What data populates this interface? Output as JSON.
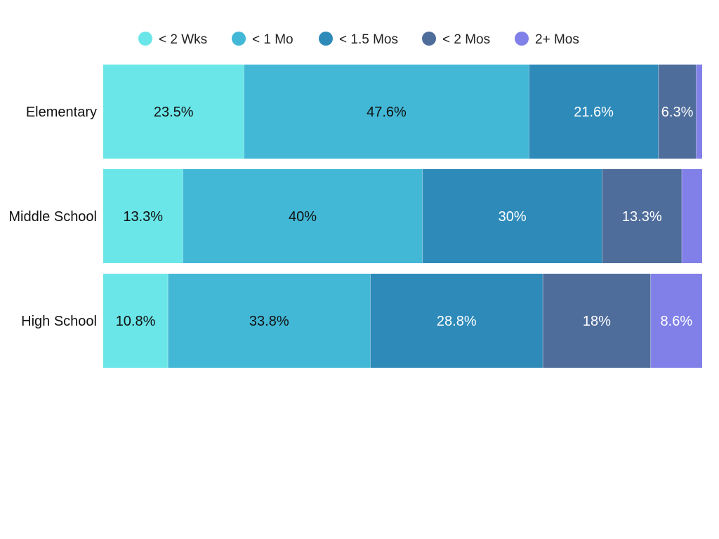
{
  "chart_data": {
    "type": "bar",
    "orientation": "horizontal",
    "stacked": "percent",
    "title": "",
    "xlabel": "",
    "ylabel": "",
    "xlim": [
      0,
      100
    ],
    "grid": false,
    "legend_position": "top-center",
    "categories": [
      "Elementary",
      "Middle School",
      "High School"
    ],
    "series": [
      {
        "name": "< 2 Wks",
        "color": "#6ae6e8",
        "label_color": "#111111",
        "values": [
          23.5,
          13.3,
          10.8
        ],
        "labels": [
          "23.5%",
          "13.3%",
          "10.8%"
        ]
      },
      {
        "name": "< 1 Mo",
        "color": "#42b8d6",
        "label_color": "#111111",
        "values": [
          47.6,
          40,
          33.8
        ],
        "labels": [
          "47.6%",
          "40%",
          "33.8%"
        ]
      },
      {
        "name": "< 1.5 Mos",
        "color": "#2d8ab9",
        "label_color": "#ffffff",
        "values": [
          21.6,
          30,
          28.8
        ],
        "labels": [
          "21.6%",
          "30%",
          "28.8%"
        ]
      },
      {
        "name": "< 2 Mos",
        "color": "#4f6d9b",
        "label_color": "#ffffff",
        "values": [
          6.3,
          13.3,
          18
        ],
        "labels": [
          "6.3%",
          "13.3%",
          "18%"
        ]
      },
      {
        "name": "2+ Mos",
        "color": "#8080e8",
        "label_color": "#ffffff",
        "values": [
          1.0,
          3.4,
          8.6
        ],
        "labels": [
          "",
          "",
          "8.6%"
        ]
      }
    ]
  }
}
